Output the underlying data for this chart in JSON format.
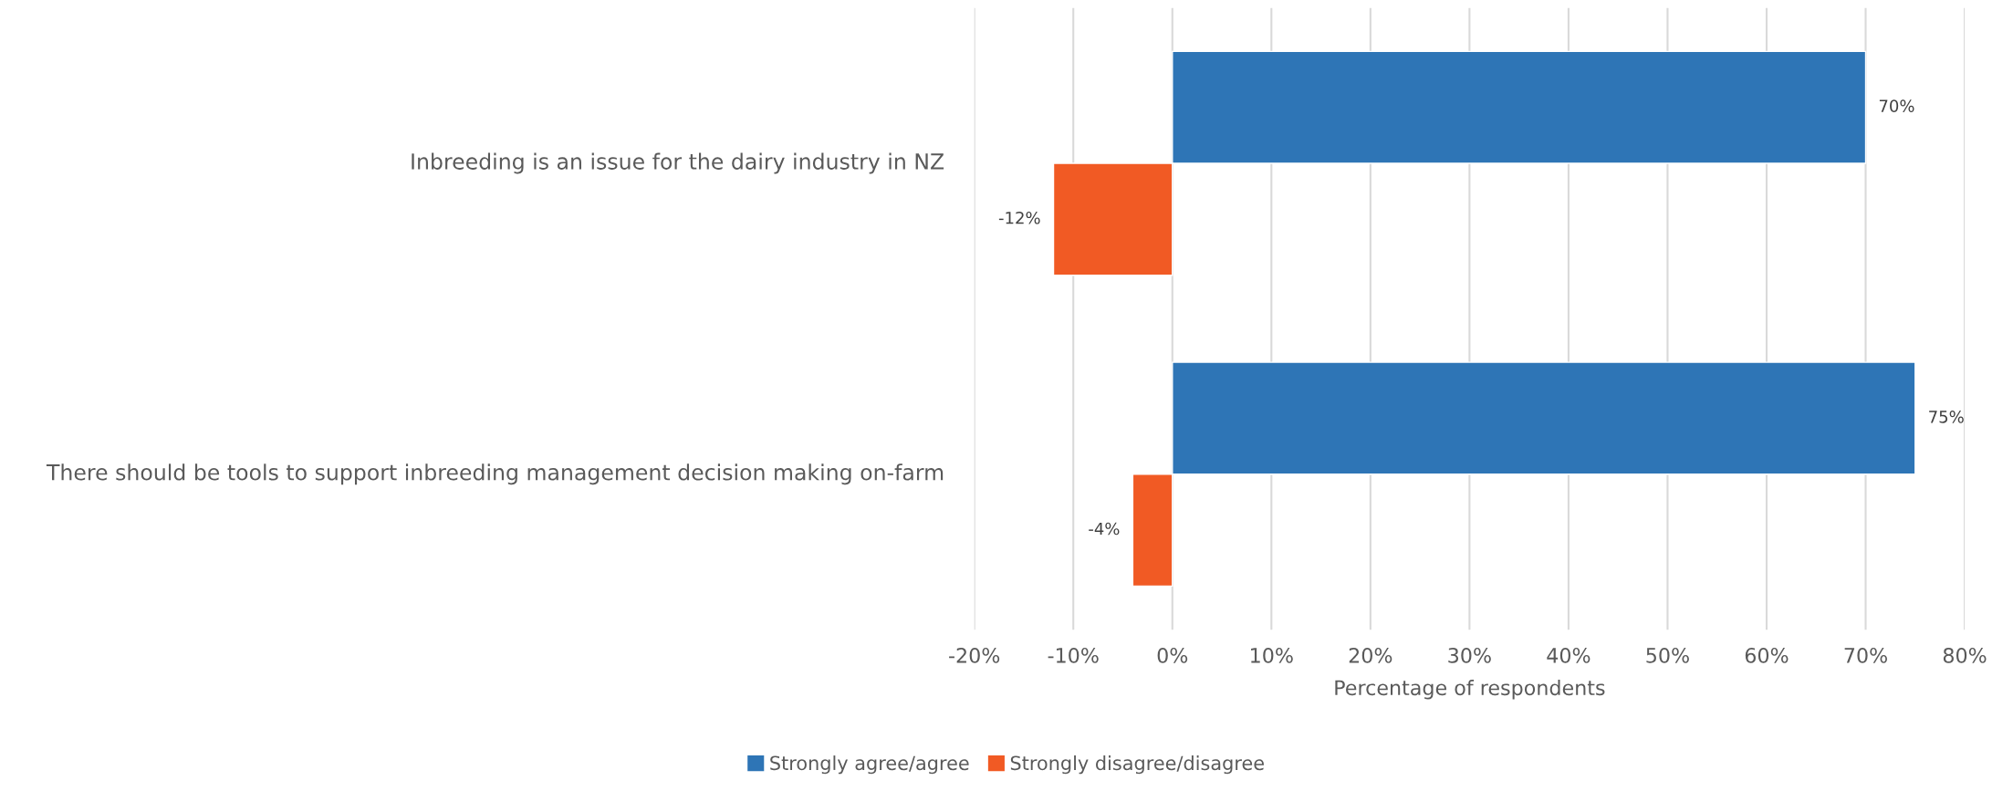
{
  "chart_data": {
    "type": "bar",
    "orientation": "horizontal",
    "categories": [
      "Inbreeding is an issue for the dairy industry in NZ",
      "There should be tools to support inbreeding management decision making on-farm"
    ],
    "series": [
      {
        "name": "Strongly agree/agree",
        "color": "#2e75b6",
        "values": [
          70,
          75
        ],
        "value_labels": [
          "70%",
          "75%"
        ]
      },
      {
        "name": "Strongly disagree/disagree",
        "color": "#f15a24",
        "values": [
          -12,
          -4
        ],
        "value_labels": [
          "-12%",
          "-4%"
        ]
      }
    ],
    "xlabel": "Percentage of respondents",
    "xlim": [
      -20,
      80
    ],
    "xticks": [
      {
        "value": -20,
        "label": "-20%"
      },
      {
        "value": -10,
        "label": "-10%"
      },
      {
        "value": 0,
        "label": "0%"
      },
      {
        "value": 10,
        "label": "10%"
      },
      {
        "value": 20,
        "label": "20%"
      },
      {
        "value": 30,
        "label": "30%"
      },
      {
        "value": 40,
        "label": "40%"
      },
      {
        "value": 50,
        "label": "50%"
      },
      {
        "value": 60,
        "label": "60%"
      },
      {
        "value": 70,
        "label": "70%"
      },
      {
        "value": 80,
        "label": "80%"
      }
    ],
    "grid": "x",
    "legend": "bottom"
  }
}
